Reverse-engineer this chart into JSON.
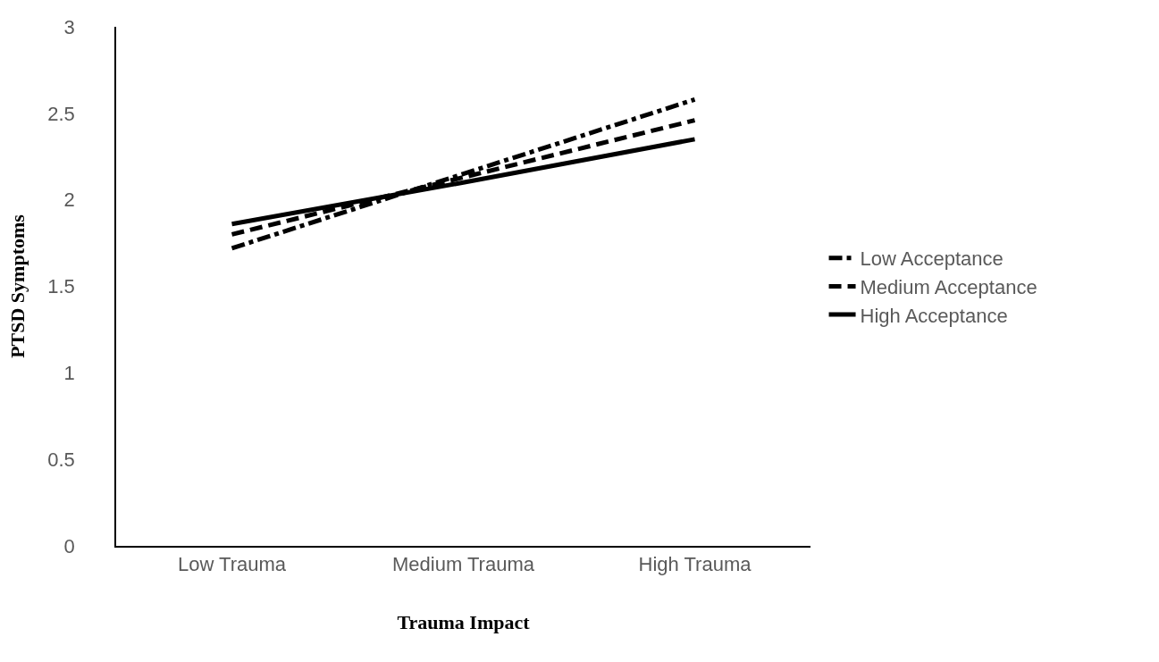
{
  "chart_data": {
    "type": "line",
    "xlabel": "Trauma Impact",
    "ylabel": "PTSD Symptoms",
    "categories": [
      "Low Trauma",
      "Medium Trauma",
      "High Trauma"
    ],
    "series": [
      {
        "name": "Low Acceptance",
        "color": "#000000",
        "line_style": "dashdot",
        "values": [
          1.72,
          2.15,
          2.58
        ]
      },
      {
        "name": "Medium Acceptance",
        "color": "#000000",
        "line_style": "dashed",
        "values": [
          1.8,
          2.13,
          2.46
        ]
      },
      {
        "name": "High Acceptance",
        "color": "#000000",
        "line_style": "solid",
        "values": [
          1.86,
          2.1,
          2.35
        ]
      }
    ],
    "ylim": [
      0,
      3
    ],
    "yticks": [
      0,
      0.5,
      1,
      1.5,
      2,
      2.5,
      3
    ],
    "grid": false,
    "legend": "right",
    "marker": "none"
  }
}
